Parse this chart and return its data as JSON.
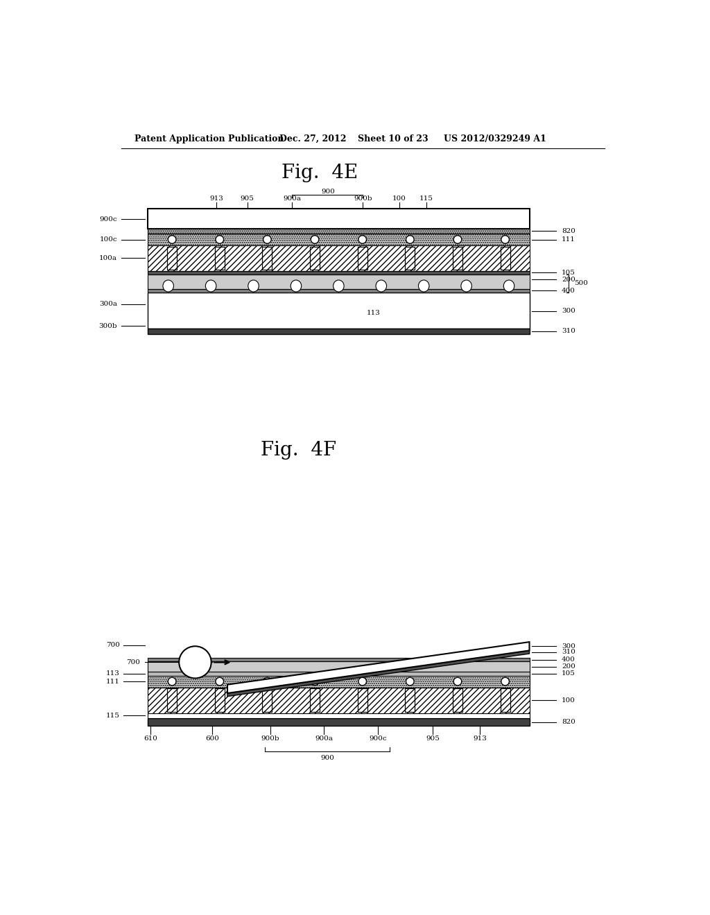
{
  "bg_color": "#ffffff",
  "header_text": "Patent Application Publication",
  "header_date": "Dec. 27, 2012",
  "header_sheet": "Sheet 10 of 23",
  "header_patent": "US 2012/0329249 A1",
  "fig4e_title": "Fig.  4E",
  "fig4f_title": "Fig.  4F"
}
